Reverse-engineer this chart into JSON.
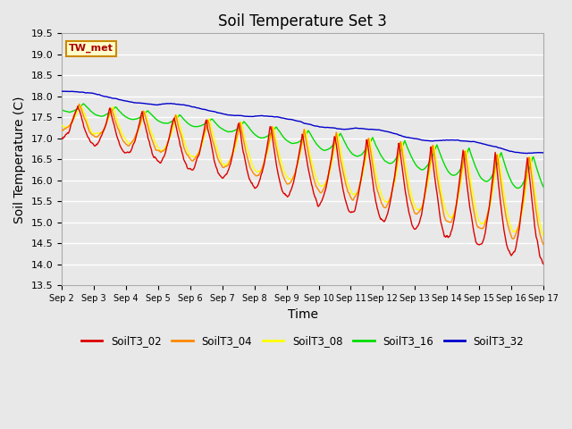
{
  "title": "Soil Temperature Set 3",
  "xlabel": "Time",
  "ylabel": "Soil Temperature (C)",
  "ylim": [
    13.5,
    19.5
  ],
  "yticks": [
    13.5,
    14.0,
    14.5,
    15.0,
    15.5,
    16.0,
    16.5,
    17.0,
    17.5,
    18.0,
    18.5,
    19.0,
    19.5
  ],
  "xtick_labels": [
    "Sep 2",
    "Sep 3",
    "Sep 4",
    "Sep 5",
    "Sep 6",
    "Sep 7",
    "Sep 8",
    "Sep 9",
    "Sep 10",
    "Sep 11",
    "Sep 12",
    "Sep 13",
    "Sep 14",
    "Sep 15",
    "Sep 16",
    "Sep 17"
  ],
  "series_colors": {
    "SoilT3_02": "#dd0000",
    "SoilT3_04": "#ff8800",
    "SoilT3_08": "#ffff00",
    "SoilT3_16": "#00dd00",
    "SoilT3_32": "#0000cc"
  },
  "annotation_text": "TW_met",
  "annotation_color": "#aa0000",
  "annotation_bg": "#ffffcc",
  "annotation_border": "#cc8800",
  "plot_bg": "#e8e8e8",
  "grid_color": "#ffffff",
  "title_fontsize": 12,
  "axis_fontsize": 10,
  "tick_fontsize": 8,
  "n_points": 720,
  "figsize": [
    6.4,
    4.8
  ],
  "dpi": 100
}
